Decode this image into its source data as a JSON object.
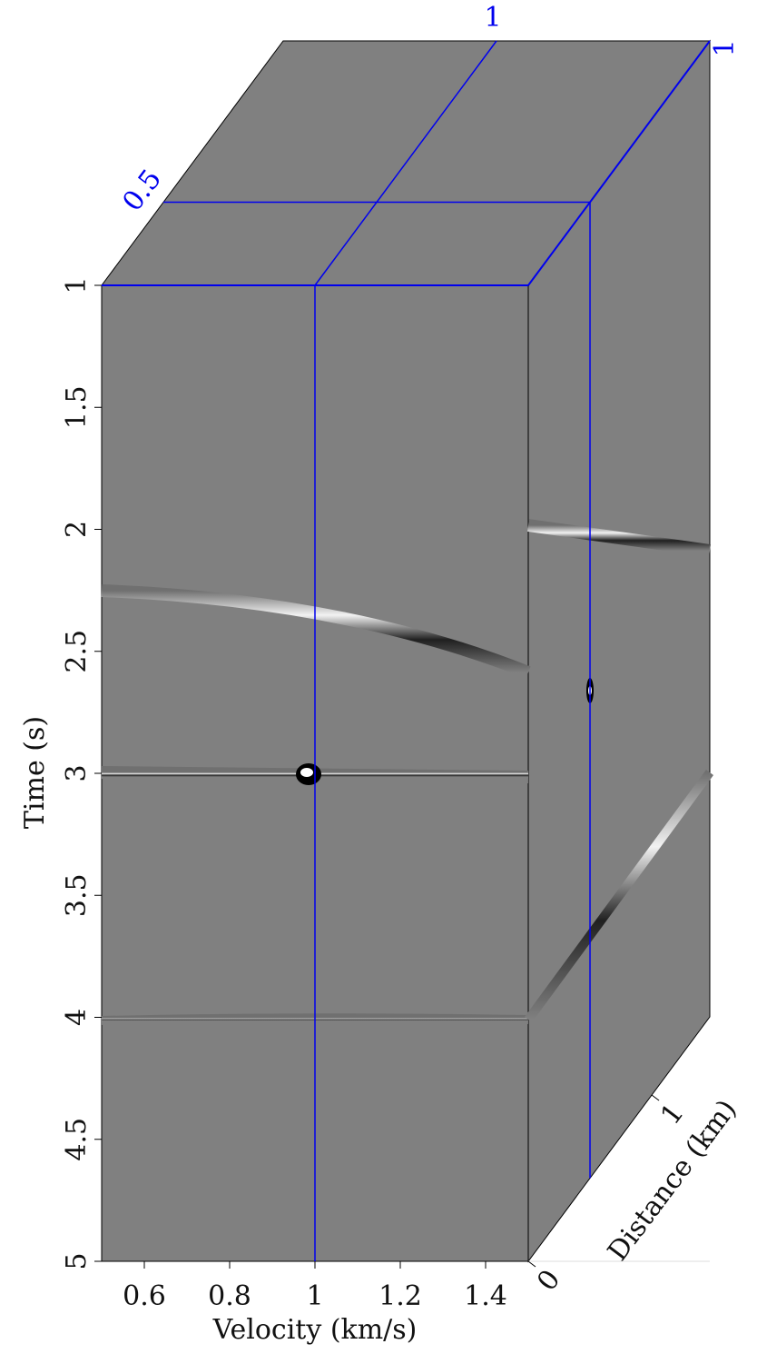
{
  "chart_data": {
    "type": "cube",
    "x_label": "Velocity (km/s)",
    "y_label": "Time (s)",
    "z_label": "Distance (km)",
    "xlim": [
      0.5,
      1.5
    ],
    "xticks": [
      0.6,
      0.8,
      1,
      1.2,
      1.4
    ],
    "ylim": [
      1,
      5
    ],
    "yticks": [
      1,
      1.5,
      2,
      2.5,
      3,
      3.5,
      4,
      4.5,
      5
    ],
    "zlim": [
      0,
      1.47
    ],
    "zticks": [
      0,
      1
    ],
    "slice_x": 1,
    "slice_y": 1,
    "slice_z": 0.5,
    "face_color": "#808080",
    "slice_color": "#0000ee"
  }
}
